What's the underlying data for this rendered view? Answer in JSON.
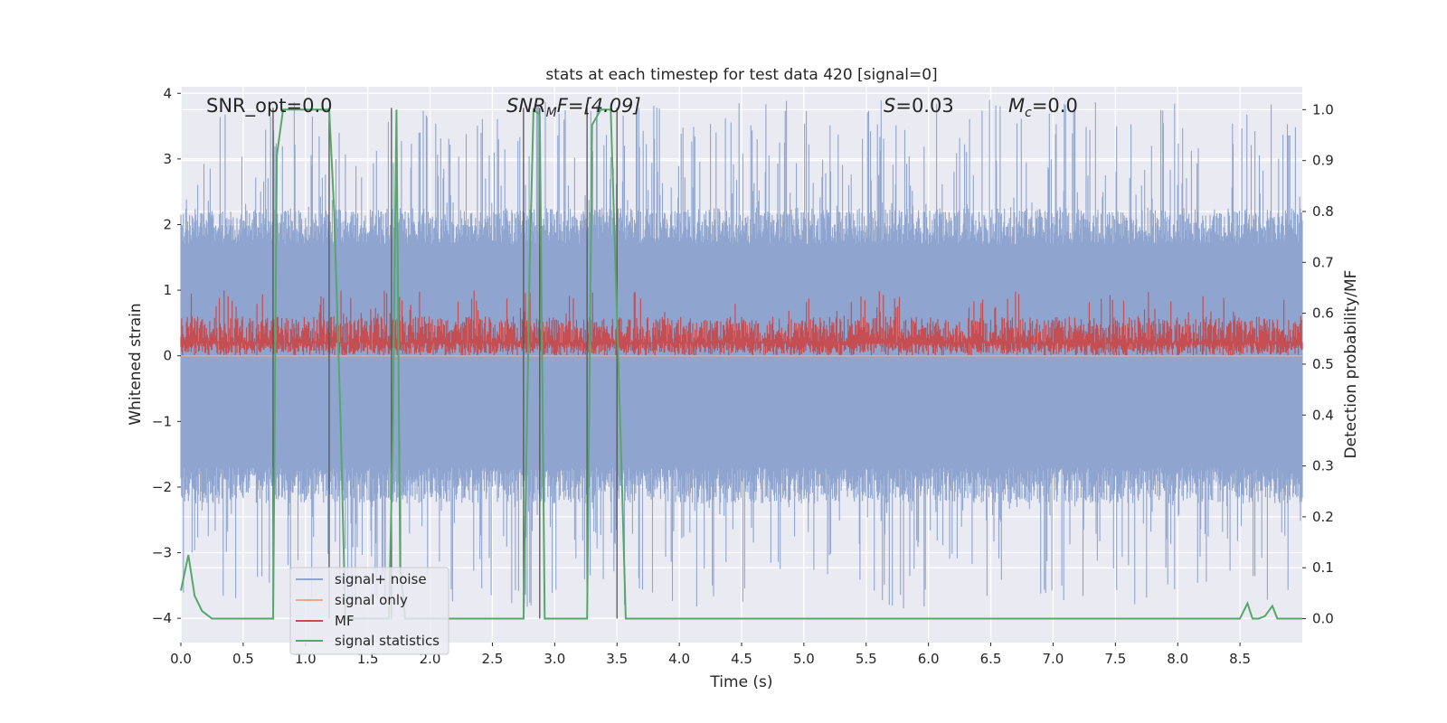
{
  "chart_data": {
    "type": "line",
    "title": "stats at each timestep for test data 420 [signal=0]",
    "xlabel": "Time (s)",
    "ylabel_left": "Whitened strain",
    "ylabel_right": "Detection probability/MF",
    "xlim": [
      0.0,
      9.0
    ],
    "ylim_left": [
      -4.37,
      4.1
    ],
    "ylim_right": [
      -0.047,
      1.045
    ],
    "x_ticks": [
      "0.0",
      "0.5",
      "1.0",
      "1.5",
      "2.0",
      "2.5",
      "3.0",
      "3.5",
      "4.0",
      "4.5",
      "5.0",
      "5.5",
      "6.0",
      "6.5",
      "7.0",
      "7.5",
      "8.0",
      "8.5"
    ],
    "y_left_ticks": [
      "−4",
      "−3",
      "−2",
      "−1",
      "0",
      "1",
      "2",
      "3",
      "4"
    ],
    "y_right_ticks": [
      "0.0",
      "0.1",
      "0.2",
      "0.3",
      "0.4",
      "0.5",
      "0.6",
      "0.7",
      "0.8",
      "0.9",
      "1.0"
    ],
    "grid": true,
    "legend_placement": "lower-left",
    "annotations": {
      "snr_opt": "SNR_opt=0.0",
      "snr_mf_sym": "SNR",
      "snr_mf_sub": "M",
      "snr_mf_rest": "F=[4.09]",
      "s_sym": "S",
      "s_rest": "=0.03",
      "mc_sym": "M",
      "mc_sub": "c",
      "mc_rest": "=0.0"
    },
    "series": [
      {
        "name": "signal+ noise",
        "color": "#8fa5cf",
        "axis": "left",
        "kind": "noise",
        "envelope_left": [
          -1.7,
          1.7
        ],
        "peak_range": [
          -3.85,
          3.9
        ]
      },
      {
        "name": "signal only",
        "color": "#e8a98a",
        "axis": "left",
        "values_constant": 0.0
      },
      {
        "name": "MF",
        "color": "#c44e52",
        "axis": "left",
        "kind": "noise",
        "envelope_left": [
          0.0,
          0.6
        ],
        "peak_max": 1.0
      },
      {
        "name": "signal statistics",
        "color": "#55a868",
        "axis": "right",
        "x": [
          0.0,
          0.06,
          0.11,
          0.17,
          0.25,
          0.5,
          0.74,
          0.77,
          0.82,
          0.9,
          1.0,
          1.1,
          1.19,
          1.23,
          1.28,
          1.32,
          1.5,
          1.67,
          1.7,
          1.73,
          1.76,
          1.8,
          2.0,
          2.5,
          2.75,
          2.8,
          2.83,
          2.88,
          2.92,
          3.0,
          3.26,
          3.3,
          3.37,
          3.45,
          3.53,
          3.57,
          4.0,
          5.0,
          6.0,
          7.0,
          8.0,
          8.5,
          8.56,
          8.6,
          8.65,
          8.7,
          8.76,
          8.8,
          8.87,
          9.0
        ],
        "values": [
          0.055,
          0.125,
          0.045,
          0.015,
          0.0,
          0.0,
          0.0,
          0.91,
          1.0,
          1.0,
          1.0,
          1.0,
          1.0,
          0.8,
          0.4,
          0.0,
          0.0,
          0.0,
          0.35,
          1.0,
          0.1,
          0.0,
          0.0,
          0.0,
          0.0,
          0.7,
          1.0,
          0.99,
          0.0,
          0.0,
          0.0,
          0.97,
          1.0,
          1.0,
          0.35,
          0.0,
          0.0,
          0.0,
          0.0,
          0.0,
          0.0,
          0.0,
          0.03,
          0.0,
          0.0,
          0.005,
          0.025,
          0.0,
          0.0,
          0.0
        ]
      }
    ],
    "vertical_lines_x": [
      0.74,
      1.19,
      1.69,
      2.75,
      2.88,
      3.26,
      3.5
    ]
  }
}
